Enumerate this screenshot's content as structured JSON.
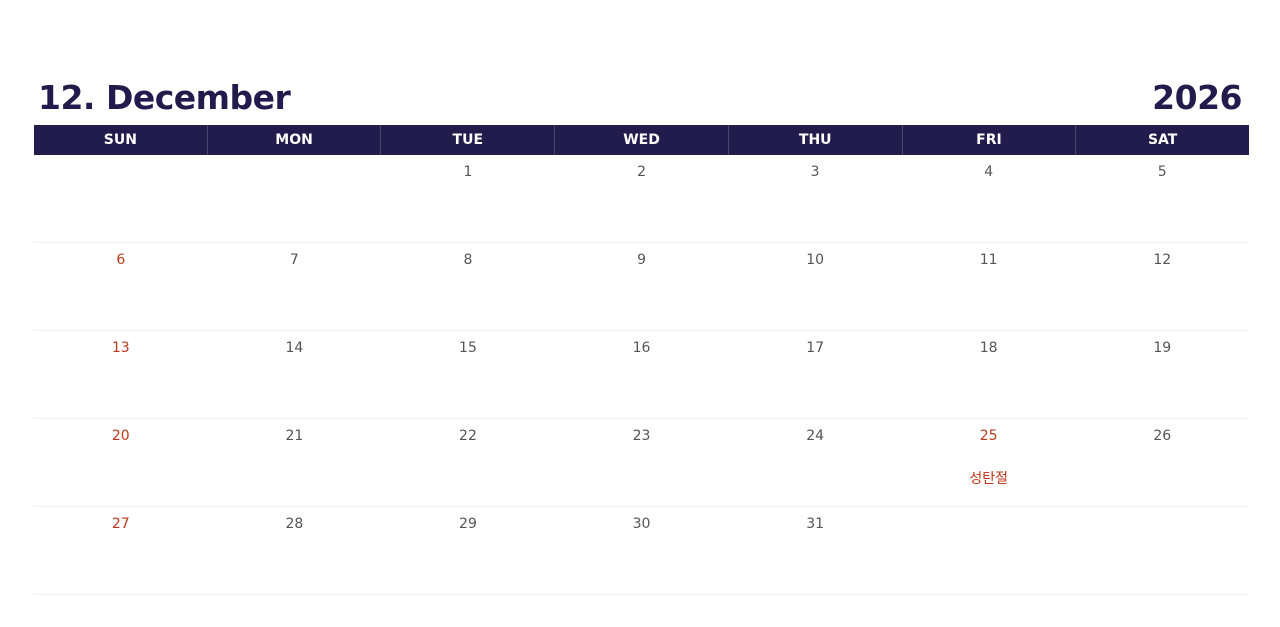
{
  "header": {
    "month_title": "12. December",
    "year": "2026"
  },
  "weekdays": [
    "SUN",
    "MON",
    "TUE",
    "WED",
    "THU",
    "FRI",
    "SAT"
  ],
  "colors": {
    "header_bg": "#221c4d",
    "holiday": "#c0391b",
    "text": "#555555"
  },
  "weeks": [
    [
      null,
      null,
      "1",
      "2",
      "3",
      "4",
      "5"
    ],
    [
      "6",
      "7",
      "8",
      "9",
      "10",
      "11",
      "12"
    ],
    [
      "13",
      "14",
      "15",
      "16",
      "17",
      "18",
      "19"
    ],
    [
      "20",
      "21",
      "22",
      "23",
      "24",
      "25",
      "26"
    ],
    [
      "27",
      "28",
      "29",
      "30",
      "31",
      null,
      null
    ]
  ],
  "holidays": [
    {
      "day": "25",
      "label": "성탄절"
    }
  ]
}
